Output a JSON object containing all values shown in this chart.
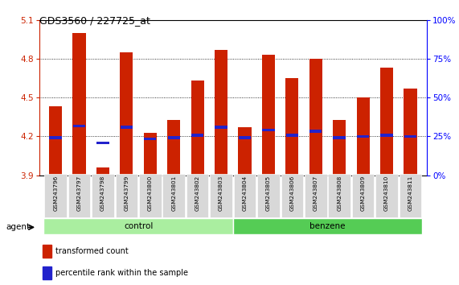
{
  "title": "GDS3560 / 227725_at",
  "samples": [
    "GSM243796",
    "GSM243797",
    "GSM243798",
    "GSM243799",
    "GSM243800",
    "GSM243801",
    "GSM243802",
    "GSM243803",
    "GSM243804",
    "GSM243805",
    "GSM243806",
    "GSM243807",
    "GSM243808",
    "GSM243809",
    "GSM243810",
    "GSM243811"
  ],
  "bar_values": [
    4.43,
    5.0,
    3.96,
    4.85,
    4.23,
    4.33,
    4.63,
    4.87,
    4.27,
    4.83,
    4.65,
    4.8,
    4.33,
    4.5,
    4.73,
    4.57
  ],
  "percentile_values": [
    4.19,
    4.28,
    4.15,
    4.27,
    4.18,
    4.19,
    4.21,
    4.27,
    4.19,
    4.25,
    4.21,
    4.24,
    4.19,
    4.2,
    4.21,
    4.2
  ],
  "groups": [
    "control",
    "control",
    "control",
    "control",
    "control",
    "control",
    "control",
    "control",
    "benzene",
    "benzene",
    "benzene",
    "benzene",
    "benzene",
    "benzene",
    "benzene",
    "benzene"
  ],
  "ylim_left": [
    3.9,
    5.1
  ],
  "yticks_left": [
    3.9,
    4.2,
    4.5,
    4.8,
    5.1
  ],
  "yticks_right": [
    0,
    25,
    50,
    75,
    100
  ],
  "bar_color": "#CC2200",
  "marker_color": "#2222CC",
  "control_color": "#AAEEA0",
  "benzene_color": "#55CC55",
  "bar_width": 0.55
}
